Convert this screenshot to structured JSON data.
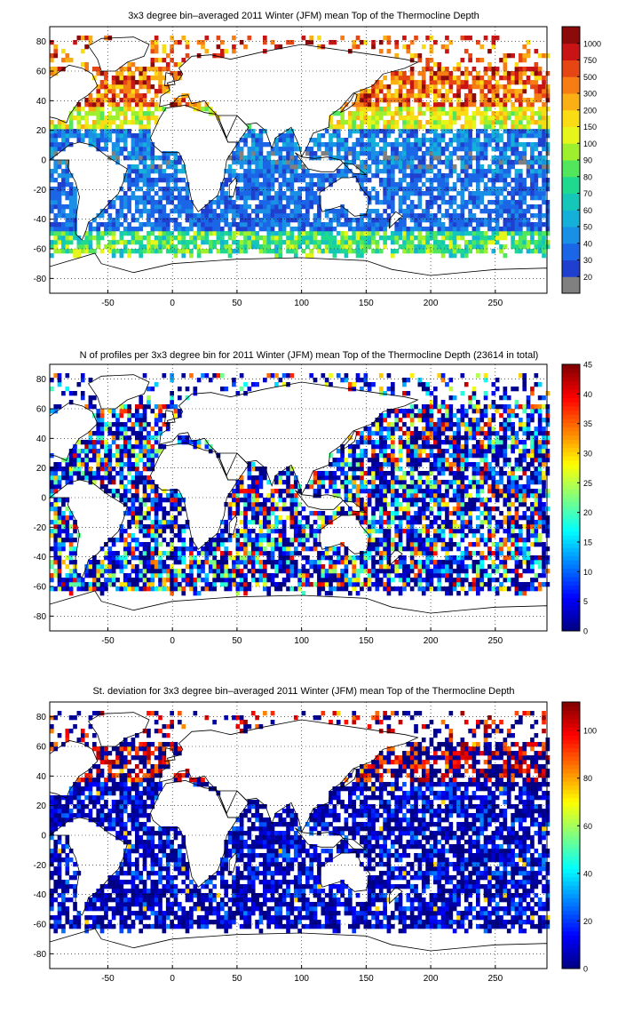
{
  "chart_data": [
    {
      "type": "heatmap",
      "title": "3x3 degree bin–averaged 2011 Winter (JFM) mean Top of the Thermocline Depth",
      "xlabel": "",
      "ylabel": "",
      "xlim": [
        -95,
        290
      ],
      "ylim": [
        -90,
        90
      ],
      "xticks": [
        -50,
        0,
        50,
        100,
        150,
        200,
        250
      ],
      "yticks": [
        80,
        60,
        40,
        20,
        0,
        -20,
        -40,
        -60,
        -80
      ],
      "grid": true,
      "bin_size_deg": 3,
      "colorbar": {
        "scale": "categorical",
        "ticks": [
          "20",
          "30",
          "40",
          "50",
          "60",
          "70",
          "80",
          "90",
          "100",
          "150",
          "200",
          "300",
          "500",
          "750",
          "1000"
        ],
        "colors": [
          "#808080",
          "#1f3fcf",
          "#1a66e6",
          "#1a8fe6",
          "#14b0d9",
          "#14c7b8",
          "#1fd98f",
          "#52e65c",
          "#9ef02e",
          "#e6f51a",
          "#fadc14",
          "#fab014",
          "#f57d14",
          "#e64614",
          "#c81414",
          "#8c0a0a"
        ]
      },
      "field": "mean"
    },
    {
      "type": "heatmap",
      "title": "N of profiles per 3x3 degree bin for 2011 Winter (JFM) mean Top of the Thermocline Depth  (23614 in total)",
      "xlabel": "",
      "ylabel": "",
      "xlim": [
        -95,
        290
      ],
      "ylim": [
        -90,
        90
      ],
      "xticks": [
        -50,
        0,
        50,
        100,
        150,
        200,
        250
      ],
      "yticks": [
        80,
        60,
        40,
        20,
        0,
        -20,
        -40,
        -60,
        -80
      ],
      "grid": true,
      "bin_size_deg": 3,
      "total_profiles": 23614,
      "colorbar": {
        "scale": "continuous",
        "colormap": "jet",
        "range": [
          0,
          45
        ],
        "ticks": [
          "0",
          "5",
          "10",
          "15",
          "20",
          "25",
          "30",
          "35",
          "40",
          "45"
        ]
      },
      "field": "count"
    },
    {
      "type": "heatmap",
      "title": "St. deviation for 3x3 degree bin–averaged 2011 Winter (JFM) mean Top of the Thermocline Depth",
      "xlabel": "",
      "ylabel": "",
      "xlim": [
        -95,
        290
      ],
      "ylim": [
        -90,
        90
      ],
      "xticks": [
        -50,
        0,
        50,
        100,
        150,
        200,
        250
      ],
      "yticks": [
        80,
        60,
        40,
        20,
        0,
        -20,
        -40,
        -60,
        -80
      ],
      "grid": true,
      "bin_size_deg": 3,
      "colorbar": {
        "scale": "continuous",
        "colormap": "jet",
        "range": [
          0,
          112
        ],
        "ticks": [
          "0",
          "20",
          "40",
          "60",
          "80",
          "100"
        ]
      },
      "field": "std"
    }
  ]
}
